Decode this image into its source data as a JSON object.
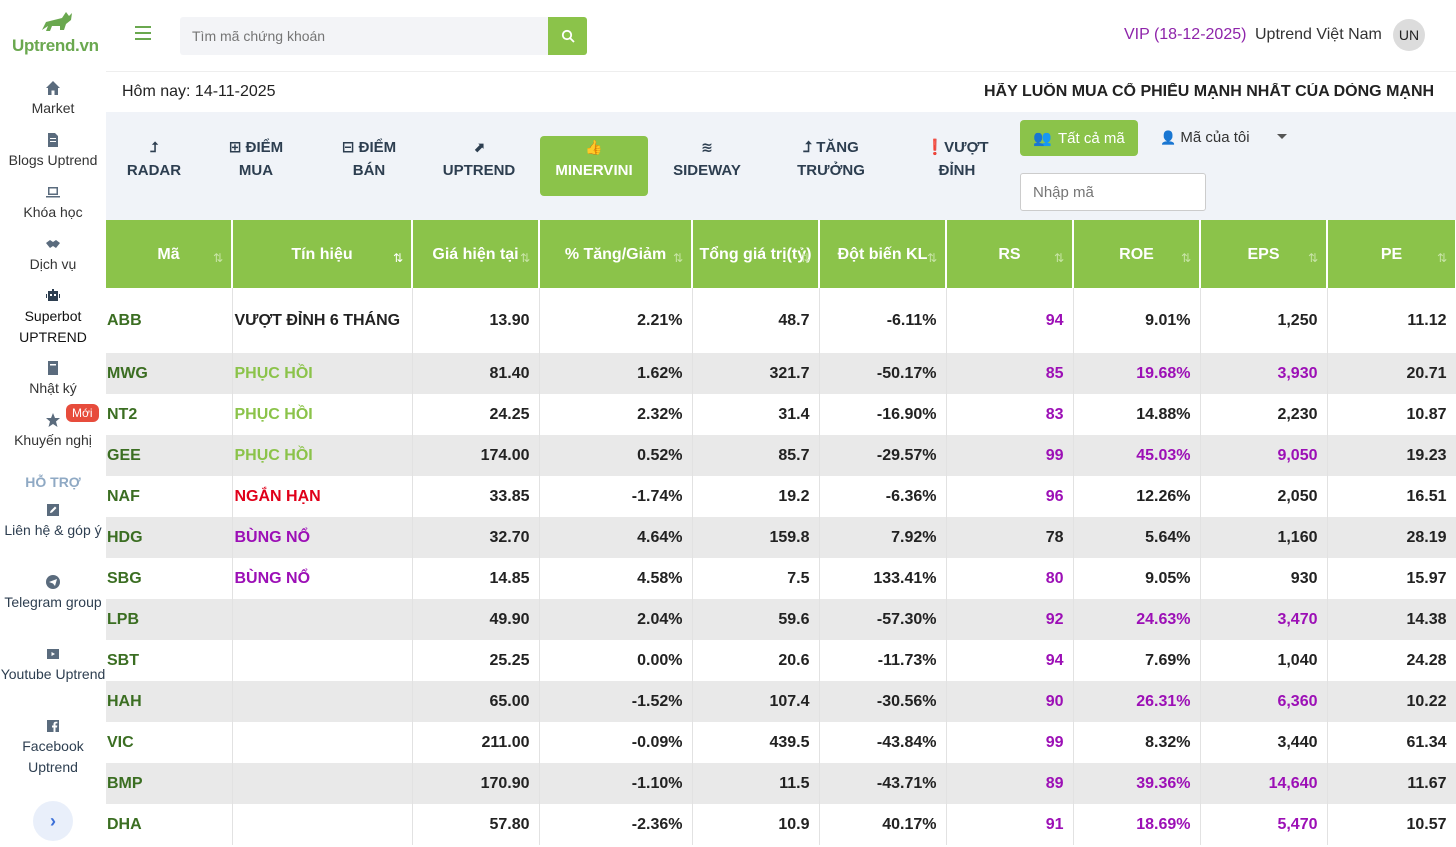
{
  "sidebar": {
    "brand": "Uptrend.vn",
    "items": [
      {
        "label": "Market",
        "icon": "home-icon"
      },
      {
        "label": "Blogs Uptrend",
        "icon": "document-icon"
      },
      {
        "label": "Khóa học",
        "icon": "laptop-icon"
      },
      {
        "label": "Dịch vụ",
        "icon": "handshake-icon"
      },
      {
        "label": "Superbot UPTREND",
        "icon": "robot-icon"
      },
      {
        "label": "Nhật ký",
        "icon": "book-icon"
      },
      {
        "label": "Khuyến nghị",
        "icon": "star-icon"
      }
    ],
    "new_badge": "Mới",
    "support_title": "HỖ TRỢ",
    "support_items": [
      {
        "label": "Liên hệ & góp ý",
        "icon": "edit-icon"
      },
      {
        "label": "Telegram group",
        "icon": "telegram-icon"
      },
      {
        "label": "Youtube Uptrend",
        "icon": "youtube-icon"
      },
      {
        "label": "Facebook Uptrend",
        "icon": "facebook-icon"
      }
    ],
    "collapse_label": "›"
  },
  "header": {
    "search_placeholder": "Tìm mã chứng khoán",
    "vip": "VIP (18-12-2025)",
    "username": "Uptrend Việt Nam",
    "avatar": "UN"
  },
  "todaybar": {
    "today": "Hôm nay: 14-11-2025",
    "slogan": "HÃY LUÔN MUA CỔ PHIẾU MẠNH NHẤT CỦA DÒNG MẠNH NHẤT"
  },
  "filters": {
    "tabs": [
      {
        "icon": "⮥",
        "line1": "",
        "line2": "RADAR"
      },
      {
        "icon": "",
        "line1": "⊞ ĐIỂM",
        "line2": "MUA"
      },
      {
        "icon": "",
        "line1": "⊟ ĐIỂM",
        "line2": "BÁN"
      },
      {
        "icon": "⬈",
        "line1": "",
        "line2": "UPTREND"
      },
      {
        "icon": "👍",
        "line1": "",
        "line2": "MINERVINI"
      },
      {
        "icon": "≋",
        "line1": "",
        "line2": "SIDEWAY"
      },
      {
        "icon": "",
        "line1": "⮥ TĂNG",
        "line2": "TRƯỞNG"
      },
      {
        "icon": "",
        "line1": "❗VƯỢT",
        "line2": "ĐỈNH"
      }
    ],
    "all_codes": "Tất cả mã",
    "my_codes": "Mã của tôi",
    "code_placeholder": "Nhập mã"
  },
  "table": {
    "columns": [
      "Mã",
      "Tín hiệu",
      "Giá hiện tại",
      "% Tăng/Giảm",
      "Tổng giá trị(tỷ)",
      "Đột biến KL",
      "RS",
      "ROE",
      "EPS",
      "PE"
    ],
    "rows": [
      {
        "code": "ABB",
        "signal": "VƯỢT ĐỈNH 6 THÁNG",
        "sig": "top",
        "price": "13.90",
        "chg": "2.21%",
        "val": "48.7",
        "vol": "-6.11%",
        "rs": "94",
        "roe": "9.01%",
        "eps": "1,250",
        "pe": "11.12"
      },
      {
        "code": "MWG",
        "signal": "PHỤC HỒI",
        "sig": "green",
        "price": "81.40",
        "chg": "1.62%",
        "val": "321.7",
        "vol": "-50.17%",
        "rs": "85",
        "roe": "19.68%",
        "eps": "3,930",
        "pe": "20.71"
      },
      {
        "code": "NT2",
        "signal": "PHỤC HỒI",
        "sig": "green",
        "price": "24.25",
        "chg": "2.32%",
        "val": "31.4",
        "vol": "-16.90%",
        "rs": "83",
        "roe": "14.88%",
        "eps": "2,230",
        "pe": "10.87"
      },
      {
        "code": "GEE",
        "signal": "PHỤC HỒI",
        "sig": "green",
        "price": "174.00",
        "chg": "0.52%",
        "val": "85.7",
        "vol": "-29.57%",
        "rs": "99",
        "roe": "45.03%",
        "eps": "9,050",
        "pe": "19.23"
      },
      {
        "code": "NAF",
        "signal": "NGẮN HẠN",
        "sig": "red",
        "price": "33.85",
        "chg": "-1.74%",
        "val": "19.2",
        "vol": "-6.36%",
        "rs": "96",
        "roe": "12.26%",
        "eps": "2,050",
        "pe": "16.51"
      },
      {
        "code": "HDG",
        "signal": "BÙNG NỔ",
        "sig": "purple",
        "price": "32.70",
        "chg": "4.64%",
        "val": "159.8",
        "vol": "7.92%",
        "rs": "78",
        "roe": "5.64%",
        "eps": "1,160",
        "pe": "28.19"
      },
      {
        "code": "SBG",
        "signal": "BÙNG NỔ",
        "sig": "purple",
        "price": "14.85",
        "chg": "4.58%",
        "val": "7.5",
        "vol": "133.41%",
        "rs": "80",
        "roe": "9.05%",
        "eps": "930",
        "pe": "15.97"
      },
      {
        "code": "LPB",
        "signal": "",
        "sig": "",
        "price": "49.90",
        "chg": "2.04%",
        "val": "59.6",
        "vol": "-57.30%",
        "rs": "92",
        "roe": "24.63%",
        "eps": "3,470",
        "pe": "14.38"
      },
      {
        "code": "SBT",
        "signal": "",
        "sig": "",
        "price": "25.25",
        "chg": "0.00%",
        "val": "20.6",
        "vol": "-11.73%",
        "rs": "94",
        "roe": "7.69%",
        "eps": "1,040",
        "pe": "24.28"
      },
      {
        "code": "HAH",
        "signal": "",
        "sig": "",
        "price": "65.00",
        "chg": "-1.52%",
        "val": "107.4",
        "vol": "-30.56%",
        "rs": "90",
        "roe": "26.31%",
        "eps": "6,360",
        "pe": "10.22"
      },
      {
        "code": "VIC",
        "signal": "",
        "sig": "",
        "price": "211.00",
        "chg": "-0.09%",
        "val": "439.5",
        "vol": "-43.84%",
        "rs": "99",
        "roe": "8.32%",
        "eps": "3,440",
        "pe": "61.34"
      },
      {
        "code": "BMP",
        "signal": "",
        "sig": "",
        "price": "170.90",
        "chg": "-1.10%",
        "val": "11.5",
        "vol": "-43.71%",
        "rs": "89",
        "roe": "39.36%",
        "eps": "14,640",
        "pe": "11.67"
      },
      {
        "code": "DHA",
        "signal": "",
        "sig": "",
        "price": "57.80",
        "chg": "-2.36%",
        "val": "10.9",
        "vol": "40.17%",
        "rs": "91",
        "roe": "18.69%",
        "eps": "5,470",
        "pe": "10.57"
      }
    ]
  },
  "colors": {
    "accent": "#8bc34a",
    "purple": "#9c0fb6",
    "red": "#e0001a",
    "code_green": "#3b6e22"
  }
}
